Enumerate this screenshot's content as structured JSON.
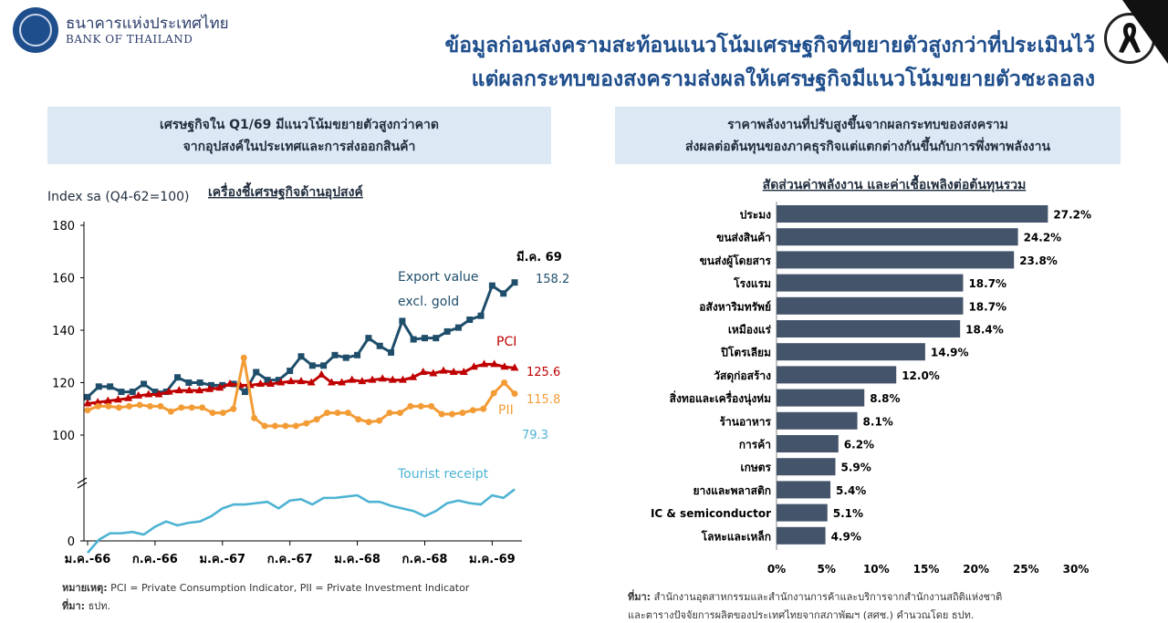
{
  "header": {
    "logo_th": "ธนาคารแห่งประเทศไทย",
    "logo_en": "BANK OF THAILAND",
    "title_line1": "ข้อมูลก่อนสงครามสะท้อนแนวโน้มเศรษฐกิจที่ขยายตัวสูงกว่าที่ประเมินไว้",
    "title_line2": "แต่ผลกระทบของสงครามส่งผลให้เศรษฐกิจมีแนวโน้มขยายตัวชะลอลง",
    "accent_color": "#1f4e8c"
  },
  "left_panel": {
    "box_line1": "เศรษฐกิจใน Q1/69 มีแนวโน้มขยายตัวสูงกว่าคาด",
    "box_line2": "จากอุปสงค์ในประเทศและการส่งออกสินค้า",
    "note_label": "หมายเหตุ:",
    "note_text": " PCI = Private Consumption Indicator, PII = Private Investment Indicator",
    "source_label": "ที่มา:",
    "source_text": " ธปท."
  },
  "right_panel": {
    "box_line1": "ราคาพลังงานที่ปรับสูงขึ้นจากผลกระทบของสงคราม",
    "box_line2": "ส่งผลต่อต้นทุนของภาคธุรกิจแต่แตกต่างกันขึ้นกับการพึ่งพาพลังงาน",
    "source_label": "ที่มา:",
    "source_text1": " สำนักงานอุตสาหกรรมและสำนักงานการค้าและบริการจากสำนักงานสถิติแห่งชาติ",
    "source_text2": "และตารางปัจจัยการผลิตของประเทศไทยจากสภาพัฒฯ (สศช.) คำนวณโดย ธปท."
  },
  "chart_data": [
    {
      "type": "line",
      "title": "เครื่องชี้เศรษฐกิจด้านอุปสงค์",
      "ylabel": "Index sa (Q4-62=100)",
      "ylim": [
        0,
        180
      ],
      "yticks": [
        0,
        100,
        120,
        140,
        160,
        180
      ],
      "axis_break": true,
      "x_tick_labels": [
        "ม.ค.-66",
        "ก.ค.-66",
        "ม.ค.-67",
        "ก.ค.-67",
        "ม.ค.-68",
        "ก.ค.-68",
        "ม.ค.-69"
      ],
      "latest_label": "มี.ค. 69",
      "series": [
        {
          "name": "Export value excl. gold",
          "name_line1": "Export value",
          "name_line2": "excl. gold",
          "color": "#1f4e6b",
          "marker": "square",
          "last_label": "158.2",
          "values": [
            114.5,
            118.5,
            118.5,
            116.5,
            116.5,
            119.5,
            116.5,
            116.5,
            122.0,
            120.0,
            120.0,
            119.0,
            119.0,
            119.5,
            116.5,
            124.0,
            121.0,
            121.0,
            124.5,
            130.0,
            126.5,
            126.5,
            130.5,
            129.5,
            130.5,
            137.0,
            134.0,
            131.5,
            143.5,
            136.5,
            137.0,
            137.0,
            139.5,
            141.0,
            144.0,
            145.5,
            157.0,
            154.0,
            158.2
          ]
        },
        {
          "name": "PCI",
          "name_line1": "PCI",
          "color": "#c00000",
          "marker": "triangle",
          "last_label": "125.6",
          "values": [
            112.0,
            112.5,
            113.0,
            113.5,
            114.0,
            115.0,
            115.5,
            115.5,
            116.5,
            117.0,
            117.0,
            117.0,
            117.5,
            118.0,
            119.5,
            119.0,
            119.0,
            119.5,
            119.5,
            120.0,
            120.5,
            120.5,
            120.0,
            123.0,
            120.0,
            120.0,
            121.0,
            120.5,
            121.0,
            121.5,
            121.0,
            121.0,
            122.0,
            124.0,
            123.5,
            124.5,
            124.0,
            124.0,
            126.0,
            127.0,
            127.0,
            126.0,
            125.6
          ]
        },
        {
          "name": "PII",
          "name_line1": "PII",
          "color": "#f39c36",
          "marker": "circle",
          "last_label": "115.8",
          "values": [
            109.5,
            111.0,
            111.0,
            110.5,
            111.0,
            111.5,
            111.0,
            111.0,
            109.0,
            110.5,
            110.5,
            110.5,
            108.5,
            108.5,
            110.0,
            129.5,
            106.5,
            103.5,
            103.5,
            103.5,
            103.5,
            104.5,
            106.0,
            108.5,
            108.5,
            108.5,
            106.0,
            105.0,
            105.5,
            108.5,
            108.5,
            111.0,
            111.0,
            111.0,
            108.0,
            108.0,
            108.5,
            109.5,
            110.0,
            116.0,
            120.0,
            115.8
          ]
        },
        {
          "name": "Tourist receipt",
          "name_line1": "Tourist receipt",
          "color": "#4db3d3",
          "marker": "none",
          "last_label": "79.3",
          "values": [
            55.0,
            60.0,
            62.5,
            62.5,
            63.0,
            62.0,
            65.0,
            67.0,
            65.5,
            66.5,
            67.0,
            69.0,
            72.0,
            73.5,
            73.5,
            74.0,
            74.5,
            72.0,
            75.0,
            75.5,
            73.5,
            76.0,
            76.0,
            76.5,
            77.0,
            74.5,
            74.5,
            73.0,
            72.0,
            71.0,
            69.0,
            71.0,
            74.0,
            75.0,
            74.0,
            73.5,
            77.0,
            76.0,
            79.3
          ]
        }
      ]
    },
    {
      "type": "bar",
      "orientation": "horizontal",
      "title": "สัดส่วนค่าพลังงาน และค่าเชื้อเพลิงต่อต้นทุนรวม",
      "xlim": [
        0,
        30
      ],
      "xticks": [
        "0%",
        "5%",
        "10%",
        "15%",
        "20%",
        "25%",
        "30%"
      ],
      "bar_color": "#44546a",
      "categories": [
        "ประมง",
        "ขนส่งสินค้า",
        "ขนส่งผู้โดยสาร",
        "โรงแรม",
        "อสังหาริมทรัพย์",
        "เหมืองแร่",
        "ปิโตรเลียม",
        "วัสดุก่อสร้าง",
        "สิ่งทอและเครื่องนุ่งห่ม",
        "ร้านอาหาร",
        "การค้า",
        "เกษตร",
        "ยางและพลาสติก",
        "IC & semiconductor",
        "โลหะและเหล็ก"
      ],
      "values": [
        27.2,
        24.2,
        23.8,
        18.7,
        18.7,
        18.4,
        14.9,
        12.0,
        8.8,
        8.1,
        6.2,
        5.9,
        5.4,
        5.1,
        4.9
      ],
      "value_labels": [
        "27.2%",
        "24.2%",
        "23.8%",
        "18.7%",
        "18.7%",
        "18.4%",
        "14.9%",
        "12.0%",
        "8.8%",
        "8.1%",
        "6.2%",
        "5.9%",
        "5.4%",
        "5.1%",
        "4.9%"
      ]
    }
  ]
}
